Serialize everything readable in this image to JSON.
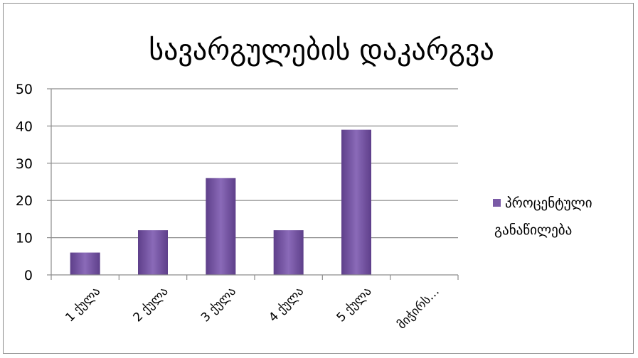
{
  "chart_data": {
    "type": "bar",
    "title": "სავარგულების დაკარგვა",
    "categories": [
      "1 ქულა",
      "2 ქულა",
      "3 ქულა",
      "4 ქულა",
      "5 ქულა",
      "მიჭირს…"
    ],
    "series": [
      {
        "name": "პროცენტული განაწილება",
        "values": [
          6,
          12,
          26,
          12,
          39,
          0
        ],
        "color": "#7a5aa6"
      }
    ],
    "yticks": [
      0,
      10,
      20,
      30,
      40,
      50
    ],
    "ylim": [
      0,
      50
    ],
    "grid": true,
    "legend_position": "right",
    "legend_lines": [
      "პროცენტული",
      "განაწილება"
    ]
  }
}
